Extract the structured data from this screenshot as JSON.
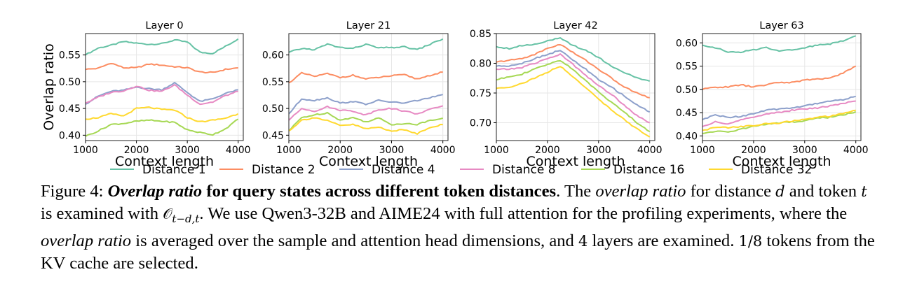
{
  "chart_data": [
    {
      "type": "line",
      "title": "Layer 0",
      "xlabel": "Context length",
      "ylabel": "Overlap ratio",
      "xlim": [
        1000,
        4100
      ],
      "ylim": [
        0.39,
        0.59
      ],
      "xticks": [
        1000,
        2000,
        3000,
        4000
      ],
      "yticks": [
        0.4,
        0.45,
        0.5,
        0.55
      ],
      "x": [
        1000,
        1250,
        1500,
        1750,
        2000,
        2250,
        2500,
        2750,
        3000,
        3250,
        3500,
        3750,
        4000
      ],
      "series": [
        {
          "name": "Distance 1",
          "values": [
            0.55,
            0.563,
            0.568,
            0.575,
            0.572,
            0.57,
            0.571,
            0.578,
            0.574,
            0.555,
            0.553,
            0.566,
            0.58
          ]
        },
        {
          "name": "Distance 2",
          "values": [
            0.523,
            0.525,
            0.535,
            0.526,
            0.526,
            0.533,
            0.531,
            0.528,
            0.526,
            0.518,
            0.517,
            0.523,
            0.526
          ]
        },
        {
          "name": "Distance 4",
          "values": [
            0.458,
            0.473,
            0.482,
            0.484,
            0.49,
            0.487,
            0.485,
            0.498,
            0.48,
            0.463,
            0.468,
            0.478,
            0.485
          ]
        },
        {
          "name": "Distance 8",
          "values": [
            0.46,
            0.471,
            0.48,
            0.483,
            0.492,
            0.484,
            0.482,
            0.494,
            0.475,
            0.458,
            0.462,
            0.474,
            0.482
          ]
        },
        {
          "name": "Distance 16",
          "values": [
            0.398,
            0.408,
            0.42,
            0.422,
            0.426,
            0.428,
            0.426,
            0.424,
            0.41,
            0.405,
            0.401,
            0.412,
            0.43
          ]
        },
        {
          "name": "Distance 32",
          "values": [
            0.43,
            0.433,
            0.44,
            0.436,
            0.45,
            0.452,
            0.448,
            0.447,
            0.433,
            0.425,
            0.428,
            0.432,
            0.44
          ]
        }
      ]
    },
    {
      "type": "line",
      "title": "Layer 21",
      "xlabel": "Context length",
      "ylabel": "",
      "xlim": [
        1000,
        4100
      ],
      "ylim": [
        0.44,
        0.64
      ],
      "xticks": [
        1000,
        2000,
        3000,
        4000
      ],
      "yticks": [
        0.45,
        0.5,
        0.55,
        0.6
      ],
      "x": [
        1000,
        1250,
        1500,
        1750,
        2000,
        2250,
        2500,
        2750,
        3000,
        3250,
        3500,
        3750,
        4000
      ],
      "series": [
        {
          "name": "Distance 1",
          "values": [
            0.605,
            0.612,
            0.61,
            0.62,
            0.614,
            0.612,
            0.62,
            0.613,
            0.614,
            0.615,
            0.61,
            0.62,
            0.63
          ]
        },
        {
          "name": "Distance 2",
          "values": [
            0.548,
            0.566,
            0.56,
            0.565,
            0.558,
            0.562,
            0.555,
            0.558,
            0.561,
            0.563,
            0.555,
            0.562,
            0.568
          ]
        },
        {
          "name": "Distance 4",
          "values": [
            0.49,
            0.518,
            0.515,
            0.52,
            0.51,
            0.513,
            0.508,
            0.515,
            0.512,
            0.51,
            0.515,
            0.52,
            0.526
          ]
        },
        {
          "name": "Distance 8",
          "values": [
            0.478,
            0.5,
            0.495,
            0.503,
            0.497,
            0.495,
            0.488,
            0.498,
            0.5,
            0.495,
            0.49,
            0.498,
            0.505
          ]
        },
        {
          "name": "Distance 16",
          "values": [
            0.458,
            0.483,
            0.488,
            0.492,
            0.478,
            0.483,
            0.475,
            0.482,
            0.47,
            0.472,
            0.47,
            0.478,
            0.482
          ]
        },
        {
          "name": "Distance 32",
          "values": [
            0.458,
            0.478,
            0.483,
            0.477,
            0.468,
            0.47,
            0.462,
            0.465,
            0.458,
            0.46,
            0.453,
            0.465,
            0.47
          ]
        }
      ]
    },
    {
      "type": "line",
      "title": "Layer 42",
      "xlabel": "Context length",
      "ylabel": "",
      "xlim": [
        1000,
        4100
      ],
      "ylim": [
        0.67,
        0.85
      ],
      "xticks": [
        1000,
        2000,
        3000,
        4000
      ],
      "yticks": [
        0.7,
        0.75,
        0.8,
        0.85
      ],
      "x": [
        1000,
        1250,
        1500,
        1750,
        2000,
        2250,
        2500,
        2750,
        3000,
        3250,
        3500,
        3750,
        4000
      ],
      "series": [
        {
          "name": "Distance 1",
          "values": [
            0.828,
            0.825,
            0.83,
            0.832,
            0.838,
            0.842,
            0.83,
            0.822,
            0.81,
            0.795,
            0.785,
            0.775,
            0.77
          ]
        },
        {
          "name": "Distance 2",
          "values": [
            0.802,
            0.805,
            0.808,
            0.815,
            0.825,
            0.832,
            0.818,
            0.805,
            0.79,
            0.775,
            0.76,
            0.75,
            0.742
          ]
        },
        {
          "name": "Distance 4",
          "values": [
            0.795,
            0.796,
            0.8,
            0.808,
            0.815,
            0.822,
            0.805,
            0.79,
            0.772,
            0.76,
            0.745,
            0.73,
            0.718
          ]
        },
        {
          "name": "Distance 8",
          "values": [
            0.79,
            0.79,
            0.793,
            0.8,
            0.808,
            0.815,
            0.798,
            0.78,
            0.762,
            0.748,
            0.73,
            0.712,
            0.7
          ]
        },
        {
          "name": "Distance 16",
          "values": [
            0.772,
            0.778,
            0.782,
            0.79,
            0.798,
            0.805,
            0.79,
            0.77,
            0.752,
            0.735,
            0.718,
            0.7,
            0.685
          ]
        },
        {
          "name": "Distance 32",
          "values": [
            0.758,
            0.76,
            0.766,
            0.775,
            0.785,
            0.795,
            0.778,
            0.758,
            0.74,
            0.722,
            0.705,
            0.69,
            0.676
          ]
        }
      ]
    },
    {
      "type": "line",
      "title": "Layer 63",
      "xlabel": "Context length",
      "ylabel": "",
      "xlim": [
        1000,
        4100
      ],
      "ylim": [
        0.39,
        0.62
      ],
      "xticks": [
        1000,
        2000,
        3000,
        4000
      ],
      "yticks": [
        0.4,
        0.45,
        0.5,
        0.55,
        0.6
      ],
      "x": [
        1000,
        1250,
        1500,
        1750,
        2000,
        2250,
        2500,
        2750,
        3000,
        3250,
        3500,
        3750,
        4000
      ],
      "series": [
        {
          "name": "Distance 1",
          "values": [
            0.595,
            0.59,
            0.58,
            0.58,
            0.585,
            0.59,
            0.583,
            0.585,
            0.59,
            0.595,
            0.598,
            0.605,
            0.615
          ]
        },
        {
          "name": "Distance 2",
          "values": [
            0.5,
            0.505,
            0.505,
            0.51,
            0.505,
            0.51,
            0.515,
            0.515,
            0.52,
            0.522,
            0.525,
            0.535,
            0.55
          ]
        },
        {
          "name": "Distance 4",
          "values": [
            0.435,
            0.445,
            0.44,
            0.442,
            0.448,
            0.455,
            0.458,
            0.46,
            0.465,
            0.47,
            0.475,
            0.478,
            0.485
          ]
        },
        {
          "name": "Distance 8",
          "values": [
            0.42,
            0.43,
            0.425,
            0.435,
            0.44,
            0.448,
            0.45,
            0.455,
            0.458,
            0.46,
            0.465,
            0.47,
            0.475
          ]
        },
        {
          "name": "Distance 16",
          "values": [
            0.405,
            0.41,
            0.408,
            0.415,
            0.42,
            0.425,
            0.428,
            0.43,
            0.432,
            0.438,
            0.44,
            0.445,
            0.452
          ]
        },
        {
          "name": "Distance 32",
          "values": [
            0.412,
            0.418,
            0.418,
            0.42,
            0.422,
            0.426,
            0.428,
            0.432,
            0.435,
            0.44,
            0.442,
            0.448,
            0.455
          ]
        }
      ]
    }
  ],
  "legend": {
    "placement": "bottom",
    "items": [
      {
        "label": "Distance 1",
        "color": "#66c2a5"
      },
      {
        "label": "Distance 2",
        "color": "#fc8d62"
      },
      {
        "label": "Distance 4",
        "color": "#8da0cb"
      },
      {
        "label": "Distance 8",
        "color": "#e78ac3"
      },
      {
        "label": "Distance 16",
        "color": "#a6d854"
      },
      {
        "label": "Distance 32",
        "color": "#ffd92f"
      }
    ]
  },
  "caption": {
    "figure_label": "Figure 4:",
    "title": "Overlap ratio",
    "title_rest": "for query states across different token distances",
    "end_title": ".",
    "s1_pre": "The",
    "s1_em": "overlap ratio",
    "s1_mid1": "for distance",
    "s1_var_d": "d",
    "s1_mid2": "and token",
    "s1_var_t": "t",
    "s1_mid3": "is examined with",
    "s1_math": "𝒪",
    "s1_sub": "t−d,t",
    "s1_end": ".",
    "s2": "We use Qwen3-32B and AIME24 with full attention for the profiling experiments, where the",
    "s2_em": "overlap ratio",
    "s2_rest": "is averaged over the sample and attention head dimensions, and",
    "s2_num": "4",
    "s2_end": "layers are examined.",
    "s3_num": "1/8",
    "s3": "tokens from the KV cache are selected."
  }
}
